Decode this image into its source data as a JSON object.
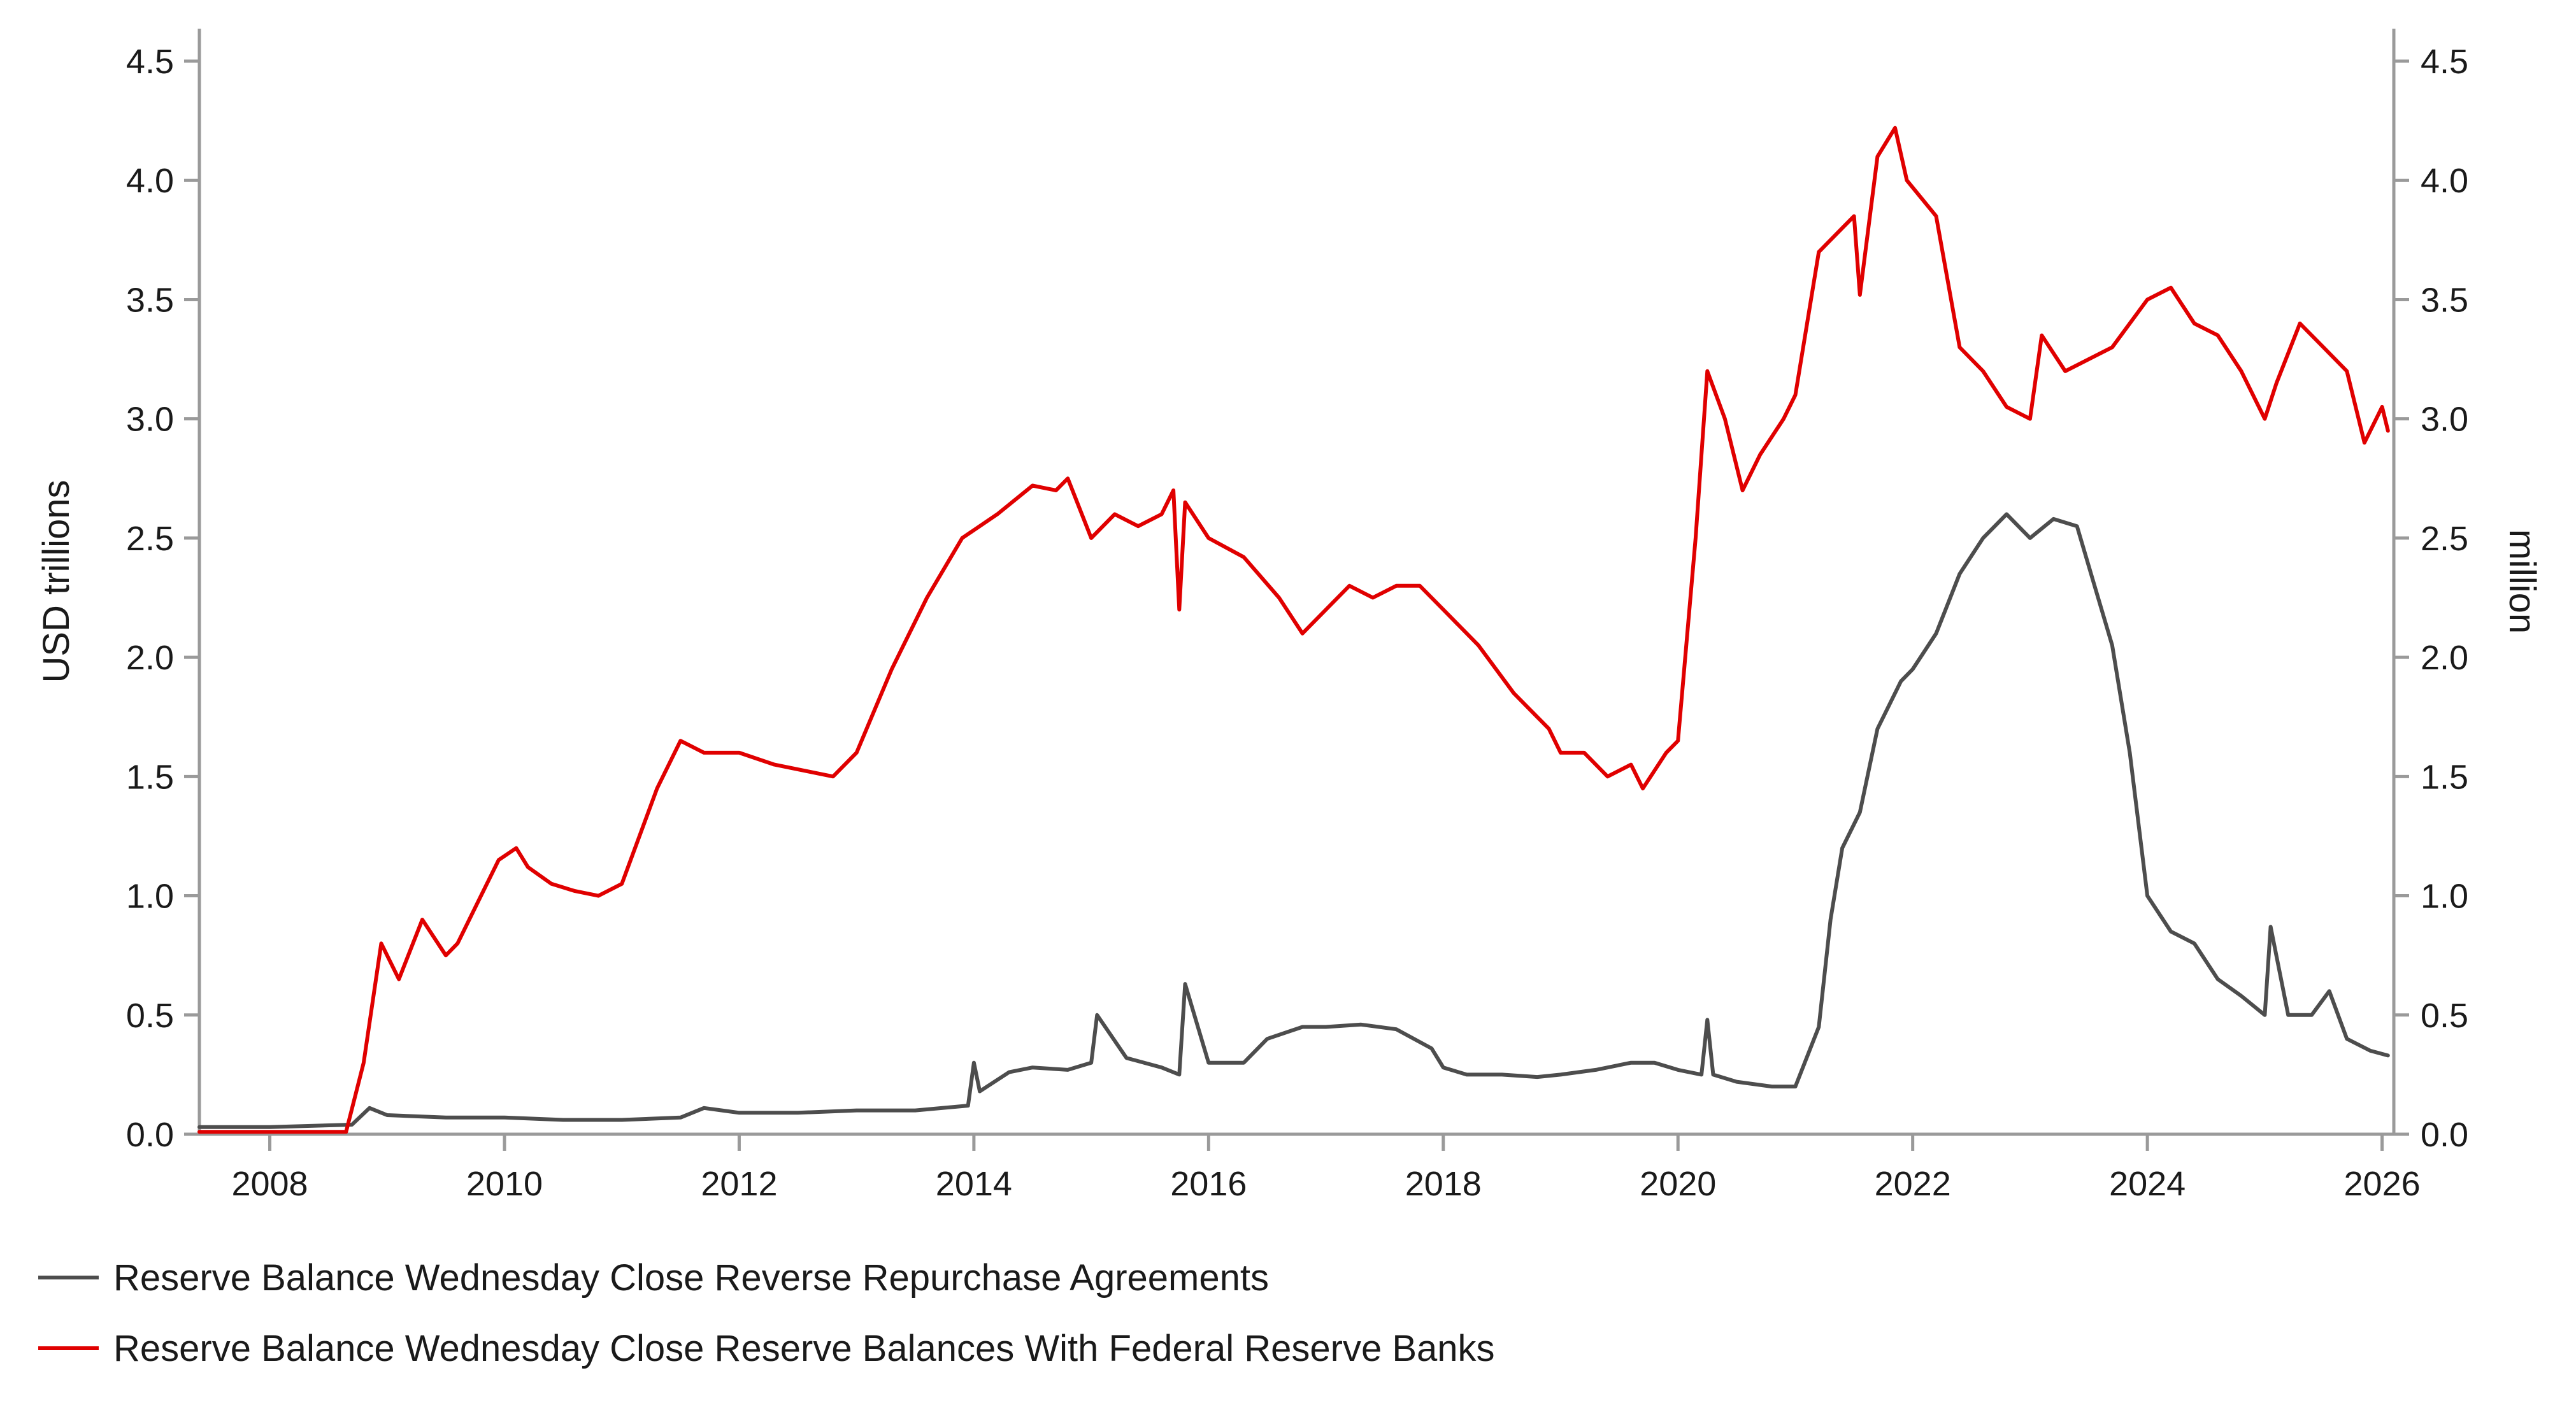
{
  "chart_data": {
    "type": "line",
    "title": "",
    "xlabel": "",
    "ylabel_left": "USD trillions",
    "ylabel_right": "million",
    "xlim": [
      2007.4,
      2026.1
    ],
    "ylim_left": [
      0,
      4.5
    ],
    "ylim_right": [
      0,
      4.5
    ],
    "x_ticks": [
      2008,
      2010,
      2012,
      2014,
      2016,
      2018,
      2020,
      2022,
      2024,
      2026
    ],
    "x_tick_labels": [
      "2008",
      "2010",
      "2012",
      "2014",
      "2016",
      "2018",
      "2020",
      "2022",
      "2024",
      "2026"
    ],
    "y_ticks": [
      0.0,
      0.5,
      1.0,
      1.5,
      2.0,
      2.5,
      3.0,
      3.5,
      4.0,
      4.5
    ],
    "y_tick_labels": [
      "0.0",
      "0.5",
      "1.0",
      "1.5",
      "2.0",
      "2.5",
      "3.0",
      "3.5",
      "4.0",
      "4.5"
    ],
    "grid": false,
    "legend_position": "bottom-left",
    "series": [
      {
        "name": "Reserve Balance Wednesday Close Reverse Repurchase Agreements",
        "color": "#4d4d4d",
        "axis": "right",
        "x": [
          2007.4,
          2008.0,
          2008.7,
          2008.85,
          2009.0,
          2009.5,
          2010.0,
          2010.5,
          2011.0,
          2011.5,
          2011.7,
          2012.0,
          2012.5,
          2013.0,
          2013.5,
          2013.95,
          2014.0,
          2014.05,
          2014.3,
          2014.5,
          2014.8,
          2015.0,
          2015.05,
          2015.3,
          2015.6,
          2015.75,
          2015.8,
          2016.0,
          2016.3,
          2016.5,
          2016.8,
          2017.0,
          2017.3,
          2017.6,
          2017.9,
          2018.0,
          2018.2,
          2018.5,
          2018.8,
          2019.0,
          2019.3,
          2019.6,
          2019.8,
          2020.0,
          2020.2,
          2020.25,
          2020.3,
          2020.5,
          2020.8,
          2021.0,
          2021.2,
          2021.3,
          2021.4,
          2021.55,
          2021.7,
          2021.9,
          2022.0,
          2022.2,
          2022.4,
          2022.6,
          2022.8,
          2023.0,
          2023.2,
          2023.4,
          2023.55,
          2023.7,
          2023.85,
          2024.0,
          2024.2,
          2024.4,
          2024.6,
          2024.8,
          2025.0,
          2025.05,
          2025.2,
          2025.4,
          2025.55,
          2025.7,
          2025.9,
          2026.05
        ],
        "y": [
          0.03,
          0.03,
          0.04,
          0.11,
          0.08,
          0.07,
          0.07,
          0.06,
          0.06,
          0.07,
          0.11,
          0.09,
          0.09,
          0.1,
          0.1,
          0.12,
          0.3,
          0.18,
          0.26,
          0.28,
          0.27,
          0.3,
          0.5,
          0.32,
          0.28,
          0.25,
          0.63,
          0.3,
          0.3,
          0.4,
          0.45,
          0.45,
          0.46,
          0.44,
          0.36,
          0.28,
          0.25,
          0.25,
          0.24,
          0.25,
          0.27,
          0.3,
          0.3,
          0.27,
          0.25,
          0.48,
          0.25,
          0.22,
          0.2,
          0.2,
          0.45,
          0.9,
          1.2,
          1.35,
          1.7,
          1.9,
          1.95,
          2.1,
          2.35,
          2.5,
          2.6,
          2.5,
          2.58,
          2.55,
          2.3,
          2.05,
          1.6,
          1.0,
          0.85,
          0.8,
          0.65,
          0.58,
          0.5,
          0.87,
          0.5,
          0.5,
          0.6,
          0.4,
          0.35,
          0.33
        ]
      },
      {
        "name": "Reserve Balance Wednesday Close Reserve Balances With Federal Reserve Banks",
        "color": "#e00000",
        "axis": "left",
        "x": [
          2007.4,
          2008.0,
          2008.65,
          2008.8,
          2008.95,
          2009.1,
          2009.3,
          2009.5,
          2009.6,
          2009.8,
          2009.95,
          2010.1,
          2010.2,
          2010.4,
          2010.6,
          2010.8,
          2011.0,
          2011.3,
          2011.5,
          2011.7,
          2012.0,
          2012.3,
          2012.6,
          2012.8,
          2013.0,
          2013.3,
          2013.6,
          2013.9,
          2014.2,
          2014.5,
          2014.7,
          2014.8,
          2015.0,
          2015.2,
          2015.4,
          2015.6,
          2015.7,
          2015.75,
          2015.8,
          2016.0,
          2016.3,
          2016.6,
          2016.8,
          2017.0,
          2017.2,
          2017.4,
          2017.6,
          2017.8,
          2018.0,
          2018.3,
          2018.6,
          2018.9,
          2019.0,
          2019.2,
          2019.4,
          2019.6,
          2019.7,
          2019.9,
          2020.0,
          2020.15,
          2020.25,
          2020.4,
          2020.55,
          2020.7,
          2020.9,
          2021.0,
          2021.2,
          2021.4,
          2021.5,
          2021.55,
          2021.7,
          2021.85,
          2021.95,
          2022.2,
          2022.4,
          2022.6,
          2022.8,
          2023.0,
          2023.1,
          2023.3,
          2023.5,
          2023.7,
          2024.0,
          2024.2,
          2024.4,
          2024.6,
          2024.8,
          2025.0,
          2025.1,
          2025.3,
          2025.5,
          2025.7,
          2025.85,
          2026.0,
          2026.05
        ],
        "y": [
          0.01,
          0.01,
          0.01,
          0.3,
          0.8,
          0.65,
          0.9,
          0.75,
          0.8,
          1.0,
          1.15,
          1.2,
          1.12,
          1.05,
          1.02,
          1.0,
          1.05,
          1.45,
          1.65,
          1.6,
          1.6,
          1.55,
          1.52,
          1.5,
          1.6,
          1.95,
          2.25,
          2.5,
          2.6,
          2.72,
          2.7,
          2.75,
          2.5,
          2.6,
          2.55,
          2.6,
          2.7,
          2.2,
          2.65,
          2.5,
          2.42,
          2.25,
          2.1,
          2.2,
          2.3,
          2.25,
          2.3,
          2.3,
          2.2,
          2.05,
          1.85,
          1.7,
          1.6,
          1.6,
          1.5,
          1.55,
          1.45,
          1.6,
          1.65,
          2.5,
          3.2,
          3.0,
          2.7,
          2.85,
          3.0,
          3.1,
          3.7,
          3.8,
          3.85,
          3.52,
          4.1,
          4.22,
          4.0,
          3.85,
          3.3,
          3.2,
          3.05,
          3.0,
          3.35,
          3.2,
          3.25,
          3.3,
          3.5,
          3.55,
          3.4,
          3.35,
          3.2,
          3.0,
          3.15,
          3.4,
          3.3,
          3.2,
          2.9,
          3.05,
          2.95
        ]
      }
    ]
  }
}
